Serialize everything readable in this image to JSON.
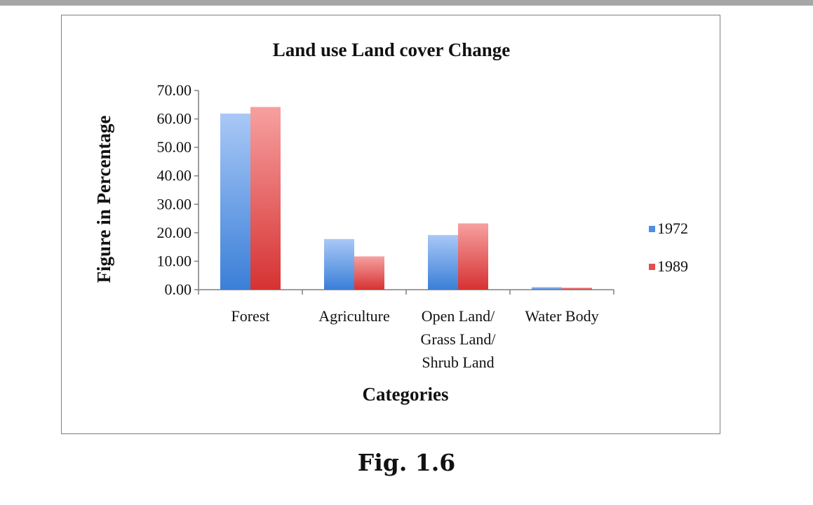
{
  "caption": "Fig. 1.6",
  "chart_data": {
    "type": "bar",
    "title": "Land use Land cover Change",
    "xlabel": "Categories",
    "ylabel": "Figure in Percentage",
    "ylim": [
      0,
      70
    ],
    "yticks": [
      "0.00",
      "10.00",
      "20.00",
      "30.00",
      "40.00",
      "50.00",
      "60.00",
      "70.00"
    ],
    "categories": [
      "Forest",
      "Agriculture",
      "Open Land/ Grass Land/ Shrub Land",
      "Water Body"
    ],
    "category_lines": [
      [
        "Forest"
      ],
      [
        "Agriculture"
      ],
      [
        "Open Land/",
        "Grass Land/",
        "Shrub Land"
      ],
      [
        "Water Body"
      ]
    ],
    "series": [
      {
        "name": "1972",
        "values": [
          61.9,
          17.8,
          19.2,
          0.9
        ],
        "color_top": "#a9c8f6",
        "color_bottom": "#3a7fd8",
        "legend_color": "#4f8fe3"
      },
      {
        "name": "1989",
        "values": [
          64.2,
          11.7,
          23.3,
          0.7
        ],
        "color_top": "#f7a0a0",
        "color_bottom": "#d63232",
        "legend_color": "#e05050"
      }
    ],
    "legend_position": "right",
    "grid": false
  }
}
